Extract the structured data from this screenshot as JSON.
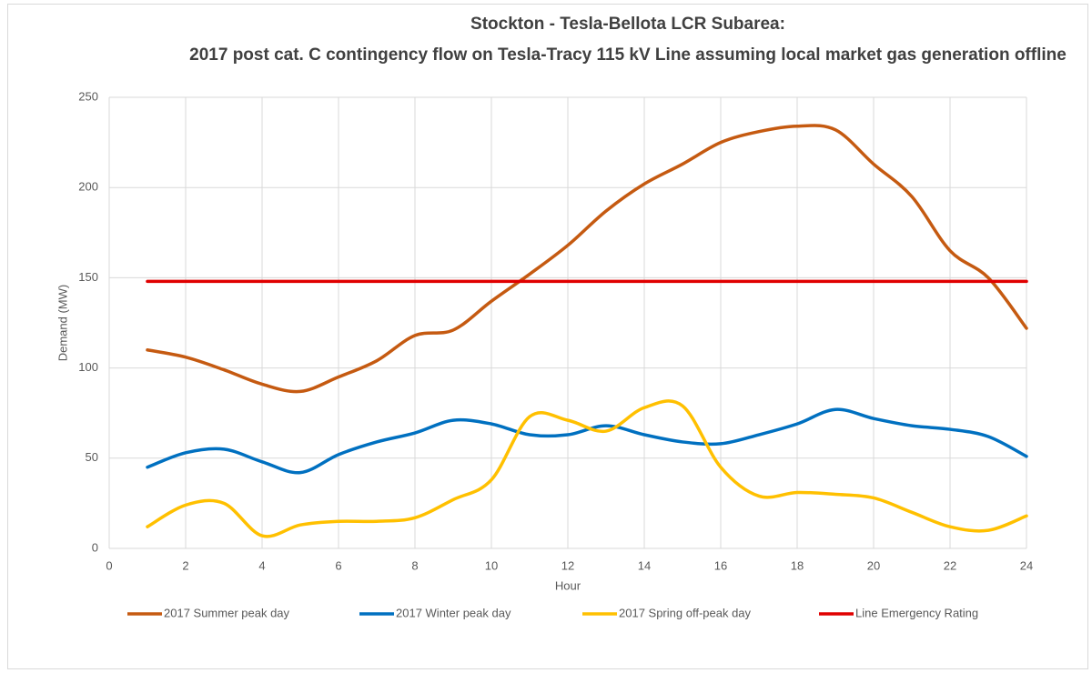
{
  "chart_data": {
    "type": "line",
    "title": "Stockton - Tesla-Bellota LCR Subarea:",
    "subtitle": "2017 post cat. C contingency flow on Tesla-Tracy 115 kV Line assuming local market gas generation offline",
    "x_label": "Hour",
    "y_label": "Demand (MW)",
    "x": [
      1,
      2,
      3,
      4,
      5,
      6,
      7,
      8,
      9,
      10,
      11,
      12,
      13,
      14,
      15,
      16,
      17,
      18,
      19,
      20,
      21,
      22,
      23,
      24
    ],
    "xlim": [
      0,
      24
    ],
    "xticks": [
      0,
      2,
      4,
      6,
      8,
      10,
      12,
      14,
      16,
      18,
      20,
      22,
      24
    ],
    "ylim": [
      0,
      250
    ],
    "yticks": [
      0,
      50,
      100,
      150,
      200,
      250
    ],
    "grid": true,
    "legend": "bottom",
    "series": [
      {
        "name": "2017 Summer peak day",
        "color": "#c55a11",
        "values": [
          110,
          106,
          99,
          91,
          87,
          95,
          104,
          118,
          121,
          137,
          152,
          168,
          187,
          202,
          213,
          225,
          231,
          234,
          232,
          213,
          195,
          165,
          150,
          122
        ]
      },
      {
        "name": "2017 Winter peak day",
        "color": "#0070c0",
        "values": [
          45,
          53,
          55,
          48,
          42,
          52,
          59,
          64,
          71,
          69,
          63,
          63,
          68,
          63,
          59,
          58,
          63,
          69,
          77,
          72,
          68,
          66,
          62,
          51
        ]
      },
      {
        "name": "2017 Spring off-peak day",
        "color": "#ffc000",
        "values": [
          12,
          24,
          25,
          7,
          13,
          15,
          15,
          17,
          27,
          38,
          73,
          71,
          65,
          78,
          79,
          45,
          29,
          31,
          30,
          28,
          20,
          12,
          10,
          18
        ]
      },
      {
        "name": "Line Emergency Rating",
        "color": "#e00000",
        "values": [
          148,
          148,
          148,
          148,
          148,
          148,
          148,
          148,
          148,
          148,
          148,
          148,
          148,
          148,
          148,
          148,
          148,
          148,
          148,
          148,
          148,
          148,
          148,
          148
        ]
      }
    ]
  }
}
